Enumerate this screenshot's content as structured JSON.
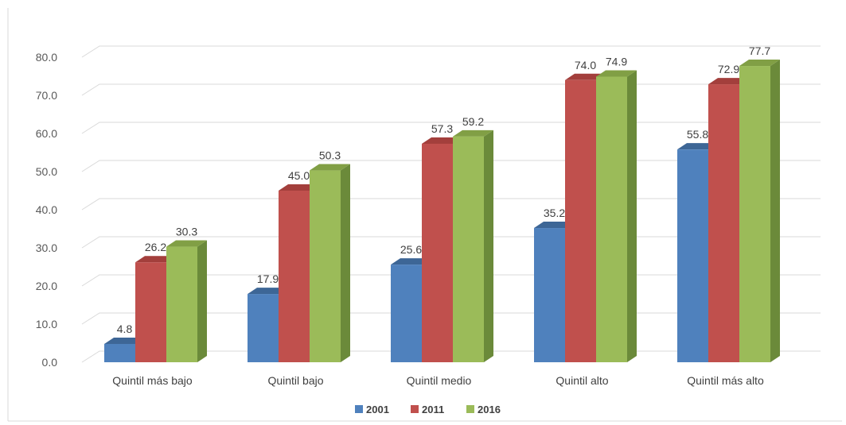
{
  "chart_data": {
    "type": "bar",
    "categories": [
      "Quintil más bajo",
      "Quintil bajo",
      "Quintil medio",
      "Quintil alto",
      "Quintil más alto"
    ],
    "series": [
      {
        "name": "2001",
        "values": [
          4.8,
          17.9,
          25.6,
          35.2,
          55.8
        ],
        "color": "#4f81bd",
        "side": "#3a6190",
        "top": "#3d6696"
      },
      {
        "name": "2011",
        "values": [
          26.2,
          45.0,
          57.3,
          74.0,
          72.9
        ],
        "color": "#c0504d",
        "side": "#8e3533",
        "top": "#a33f3c"
      },
      {
        "name": "2016",
        "values": [
          30.3,
          50.3,
          59.2,
          74.9,
          77.7
        ],
        "color": "#9bbb59",
        "side": "#6b8a3a",
        "top": "#819f45"
      }
    ],
    "y_ticks": [
      "0.0",
      "10.0",
      "20.0",
      "30.0",
      "40.0",
      "50.0",
      "60.0",
      "70.0",
      "80.0"
    ],
    "ylim": [
      0,
      80
    ],
    "grid": true,
    "legend_position": "bottom",
    "data_label_format": "0.0",
    "title": "",
    "xlabel": "",
    "ylabel": ""
  }
}
